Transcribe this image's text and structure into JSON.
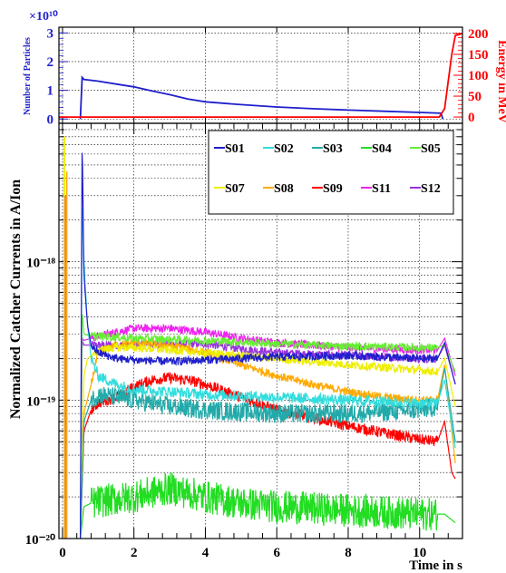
{
  "chart_data": [
    {
      "type": "line",
      "exponent_label": "×10¹⁰",
      "ylabel": "Number of Particles",
      "ylabel_right": "Energy in MeV",
      "ylim": [
        -0.15,
        3.2
      ],
      "ylim_right": [
        -15,
        215
      ],
      "xlim": [
        -0.1,
        11.2
      ],
      "yticks": [
        "0",
        "1",
        "2",
        "3"
      ],
      "yticks_right": [
        "0",
        "50",
        "100",
        "150",
        "200"
      ],
      "grid": true,
      "series": [
        {
          "color": "#1f1fcc",
          "axis": "left",
          "x": [
            0.5,
            0.55,
            0.6,
            1.0,
            1.5,
            2.0,
            2.5,
            3.0,
            3.5,
            4.0,
            5.0,
            6.0,
            7.0,
            8.0,
            9.0,
            10.0,
            10.6,
            10.65
          ],
          "y": [
            0.0,
            1.45,
            1.38,
            1.32,
            1.22,
            1.12,
            0.98,
            0.85,
            0.7,
            0.6,
            0.5,
            0.42,
            0.36,
            0.31,
            0.27,
            0.23,
            0.2,
            0.0
          ]
        },
        {
          "color": "#ff0000",
          "axis": "right",
          "x": [
            -0.1,
            10.55,
            10.7,
            10.9,
            11.0,
            11.2
          ],
          "y": [
            0,
            0,
            20,
            150,
            195,
            200
          ]
        }
      ]
    },
    {
      "type": "line",
      "ylabel": "Normalized Catcher Currents in A/Ion",
      "xlabel": "Time in s",
      "xlim": [
        -0.1,
        11.2
      ],
      "ylim": [
        1e-20,
        1e-17
      ],
      "log_y": true,
      "grid": true,
      "legend_position": "top-right",
      "xticks": [
        "0",
        "2",
        "4",
        "6",
        "8",
        "10"
      ],
      "yticks": [
        "10⁻²⁰",
        "10⁻¹⁹",
        "10⁻¹⁸"
      ],
      "series": [
        {
          "name": "S01",
          "color": "#1f1fcc",
          "x": [
            0.5,
            0.55,
            0.6,
            0.7,
            0.8,
            1.0,
            1.5,
            2.0,
            3.0,
            4.0,
            6.0,
            8.0,
            10.0,
            10.5,
            10.7,
            11.0
          ],
          "y": [
            1e-20,
            8e-18,
            8e-19,
            3.5e-19,
            2.5e-19,
            2.2e-19,
            2e-19,
            1.95e-19,
            1.9e-19,
            1.95e-19,
            2.05e-19,
            2.1e-19,
            2e-19,
            2e-19,
            2.6e-19,
            1.3e-19
          ],
          "noise": 0.03
        },
        {
          "name": "S02",
          "color": "#33dddd",
          "x": [
            0.5,
            0.55,
            0.6,
            0.7,
            0.8,
            1.0,
            1.5,
            2.0,
            3.0,
            4.0,
            6.0,
            8.0,
            10.0,
            10.5,
            10.7,
            11.0
          ],
          "y": [
            1e-20,
            3e-18,
            1e-18,
            3.5e-19,
            2e-19,
            1.5e-19,
            1.3e-19,
            1.2e-19,
            1.15e-19,
            1.1e-19,
            1.05e-19,
            1e-19,
            9.5e-20,
            9.5e-20,
            1.4e-19,
            4.5e-20
          ],
          "noise": 0.04
        },
        {
          "name": "S03",
          "color": "#22aaaa",
          "x": [
            0.5,
            0.6,
            0.8,
            1.0,
            1.5,
            2.0,
            3.0,
            4.0,
            6.0,
            8.0,
            10.0,
            10.5,
            10.7,
            11.0
          ],
          "y": [
            1e-20,
            7e-20,
            1e-19,
            1.1e-19,
            1.05e-19,
            1e-19,
            9e-20,
            8.5e-20,
            8e-20,
            8e-20,
            8.5e-20,
            9e-20,
            1.7e-19,
            5e-20
          ],
          "noise": 0.07
        },
        {
          "name": "S04",
          "color": "#22dd22",
          "x": [
            0.5,
            0.6,
            0.8,
            1.0,
            2.0,
            3.0,
            4.0,
            5.0,
            6.0,
            8.0,
            10.0,
            10.5,
            10.7,
            11.0
          ],
          "y": [
            1e-20,
            1.7e-20,
            1.8e-20,
            1.85e-20,
            2e-20,
            2.3e-20,
            2e-20,
            1.8e-20,
            1.7e-20,
            1.6e-20,
            1.5e-20,
            1.5e-20,
            1.5e-20,
            1.3e-20
          ],
          "noise": 0.12
        },
        {
          "name": "S05",
          "color": "#66ee33",
          "x": [
            0.5,
            0.55,
            0.6,
            0.8,
            1.0,
            1.5,
            2.0,
            3.0,
            4.0,
            6.0,
            8.0,
            10.0,
            10.5,
            10.7,
            11.0
          ],
          "y": [
            1e-20,
            4.5e-19,
            3e-19,
            2.9e-19,
            2.9e-19,
            2.85e-19,
            2.8e-19,
            2.75e-19,
            2.7e-19,
            2.55e-19,
            2.45e-19,
            2.4e-19,
            2.4e-19,
            2.5e-19,
            1.6e-19
          ],
          "noise": 0.03
        },
        {
          "name": "S07",
          "color": "#eeee00",
          "x": [
            0.5,
            0.6,
            0.7,
            1.0,
            1.5,
            2.0,
            3.0,
            4.0,
            6.0,
            8.0,
            10.0,
            10.5,
            10.7,
            11.0
          ],
          "y": [
            1e-20,
            1.5e-19,
            2e-19,
            2.3e-19,
            2.4e-19,
            2.4e-19,
            2.3e-19,
            2.2e-19,
            2e-19,
            1.8e-19,
            1.65e-19,
            1.6e-19,
            2e-19,
            9e-20
          ],
          "noise": 0.03
        },
        {
          "name": "S08",
          "color": "#ffaa00",
          "x": [
            0.5,
            0.6,
            0.8,
            1.0,
            1.5,
            2.0,
            2.5,
            3.0,
            4.0,
            5.0,
            6.0,
            7.0,
            8.0,
            9.0,
            10.0,
            10.5,
            10.7,
            11.0
          ],
          "y": [
            1e-20,
            8e-20,
            1.3e-19,
            2.2e-19,
            2.5e-19,
            2.6e-19,
            2.55e-19,
            2.5e-19,
            2.2e-19,
            1.8e-19,
            1.5e-19,
            1.3e-19,
            1.15e-19,
            1.05e-19,
            1e-19,
            1e-19,
            1.8e-19,
            3.5e-20
          ],
          "noise": 0.03
        },
        {
          "name": "S09",
          "color": "#ff0000",
          "x": [
            0.5,
            0.6,
            0.8,
            1.0,
            1.5,
            2.0,
            2.5,
            3.0,
            3.5,
            4.0,
            5.0,
            6.0,
            7.0,
            8.0,
            9.0,
            10.0,
            10.5,
            10.7,
            10.9,
            11.0
          ],
          "y": [
            1e-20,
            6e-20,
            8.5e-20,
            9.5e-20,
            1.05e-19,
            1.25e-19,
            1.4e-19,
            1.45e-19,
            1.4e-19,
            1.3e-19,
            1.05e-19,
            8.5e-20,
            7.5e-20,
            6.5e-20,
            5.8e-20,
            5.2e-20,
            5e-20,
            7e-20,
            3e-20,
            2.7e-20
          ],
          "noise": 0.04
        },
        {
          "name": "S11",
          "color": "#ee22ee",
          "x": [
            0.5,
            0.55,
            0.6,
            0.8,
            1.0,
            1.5,
            2.0,
            3.0,
            4.0,
            5.0,
            6.0,
            8.0,
            10.0,
            10.5,
            10.7,
            11.0
          ],
          "y": [
            1e-20,
            2.8e-19,
            2.7e-19,
            2.8e-19,
            2.9e-19,
            3.1e-19,
            3.3e-19,
            3.3e-19,
            3.1e-19,
            2.8e-19,
            2.6e-19,
            2.4e-19,
            2.3e-19,
            2.3e-19,
            2.8e-19,
            1.5e-19
          ],
          "noise": 0.03
        },
        {
          "name": "S12",
          "color": "#9933dd",
          "x": [
            0.5,
            0.55,
            0.6,
            0.8,
            1.0,
            1.5,
            2.0,
            3.0,
            4.0,
            5.0,
            6.0,
            8.0,
            10.0,
            10.5,
            10.7,
            11.0
          ],
          "y": [
            1e-20,
            2.7e-19,
            2.5e-19,
            2.5e-19,
            2.5e-19,
            2.5e-19,
            2.5e-19,
            2.55e-19,
            2.55e-19,
            2.35e-19,
            2.2e-19,
            2.1e-19,
            2e-19,
            2e-19,
            2.5e-19,
            1.3e-19
          ],
          "noise": 0.03
        }
      ]
    }
  ]
}
